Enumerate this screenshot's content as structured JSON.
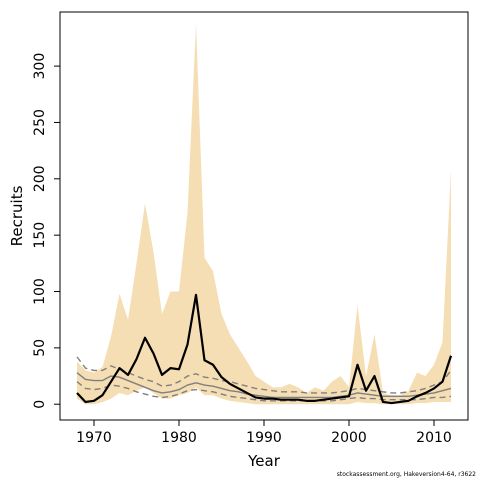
{
  "chart_data": {
    "type": "line",
    "title": "",
    "xlabel": "Year",
    "ylabel": "Recruits",
    "xlim": [
      1966,
      2014
    ],
    "ylim": [
      -14,
      348
    ],
    "x_ticks": [
      1970,
      1980,
      1990,
      2000,
      2010
    ],
    "y_ticks": [
      0,
      50,
      100,
      150,
      200,
      250,
      300
    ],
    "grid": false,
    "legend": "none",
    "colors": {
      "band": "#f5deb3",
      "median": "#000000",
      "dashed": "#808080",
      "solid_gray": "#808080"
    },
    "x": [
      1968,
      1969,
      1970,
      1971,
      1972,
      1973,
      1974,
      1975,
      1976,
      1977,
      1978,
      1979,
      1980,
      1981,
      1982,
      1983,
      1984,
      1985,
      1986,
      1987,
      1988,
      1989,
      1990,
      1991,
      1992,
      1993,
      1994,
      1995,
      1996,
      1997,
      1998,
      1999,
      2000,
      2001,
      2002,
      2003,
      2004,
      2005,
      2006,
      2007,
      2008,
      2009,
      2010,
      2011,
      2012
    ],
    "series": [
      {
        "role": "band_upper",
        "values": [
          38,
          30,
          28,
          33,
          60,
          98,
          75,
          125,
          178,
          135,
          80,
          100,
          100,
          170,
          338,
          130,
          118,
          80,
          62,
          50,
          38,
          25,
          20,
          15,
          15,
          18,
          15,
          10,
          15,
          12,
          20,
          25,
          15,
          88,
          25,
          62,
          10,
          8,
          8,
          12,
          28,
          25,
          35,
          55,
          208
        ]
      },
      {
        "role": "band_lower",
        "values": [
          5,
          0,
          0,
          2,
          5,
          10,
          8,
          12,
          15,
          10,
          5,
          5,
          8,
          10,
          15,
          8,
          8,
          5,
          3,
          2,
          1,
          0,
          0,
          0,
          0,
          0,
          0,
          0,
          0,
          0,
          0,
          0,
          0,
          2,
          1,
          1,
          0,
          0,
          0,
          0,
          1,
          1,
          2,
          2,
          2
        ]
      },
      {
        "role": "median",
        "values": [
          10,
          2,
          3,
          8,
          20,
          32,
          26,
          40,
          59,
          45,
          26,
          32,
          31,
          53,
          97,
          39,
          35,
          24,
          18,
          14,
          10,
          6,
          5,
          5,
          4,
          4,
          4,
          3,
          3,
          4,
          5,
          6,
          7,
          35,
          12,
          25,
          2,
          1,
          2,
          3,
          7,
          10,
          14,
          20,
          43
        ]
      },
      {
        "role": "dashed_upper",
        "values": [
          42,
          32,
          30,
          30,
          34,
          31,
          28,
          25,
          22,
          20,
          16,
          17,
          20,
          25,
          27,
          24,
          23,
          21,
          20,
          18,
          16,
          14,
          13,
          12,
          11,
          11,
          11,
          10,
          10,
          10,
          10,
          11,
          12,
          14,
          13,
          12,
          11,
          10,
          10,
          11,
          12,
          14,
          17,
          20,
          30
        ]
      },
      {
        "role": "solid_gray",
        "values": [
          28,
          22,
          21,
          21,
          25,
          24,
          21,
          18,
          15,
          12,
          10,
          11,
          13,
          17,
          19,
          17,
          16,
          14,
          12,
          11,
          9,
          8,
          7,
          6,
          6,
          6,
          6,
          6,
          6,
          6,
          6,
          7,
          8,
          10,
          9,
          8,
          7,
          7,
          7,
          7,
          8,
          9,
          10,
          12,
          14
        ]
      },
      {
        "role": "dashed_lower",
        "values": [
          20,
          14,
          13,
          14,
          17,
          16,
          14,
          11,
          9,
          7,
          6,
          7,
          9,
          12,
          13,
          12,
          11,
          9,
          7,
          6,
          5,
          4,
          3,
          3,
          3,
          3,
          3,
          3,
          3,
          3,
          3,
          4,
          5,
          6,
          5,
          5,
          4,
          4,
          4,
          4,
          4,
          5,
          6,
          6,
          7
        ]
      }
    ]
  },
  "footnote": "stockassessment.org, Hakeversion4-64, r3622"
}
